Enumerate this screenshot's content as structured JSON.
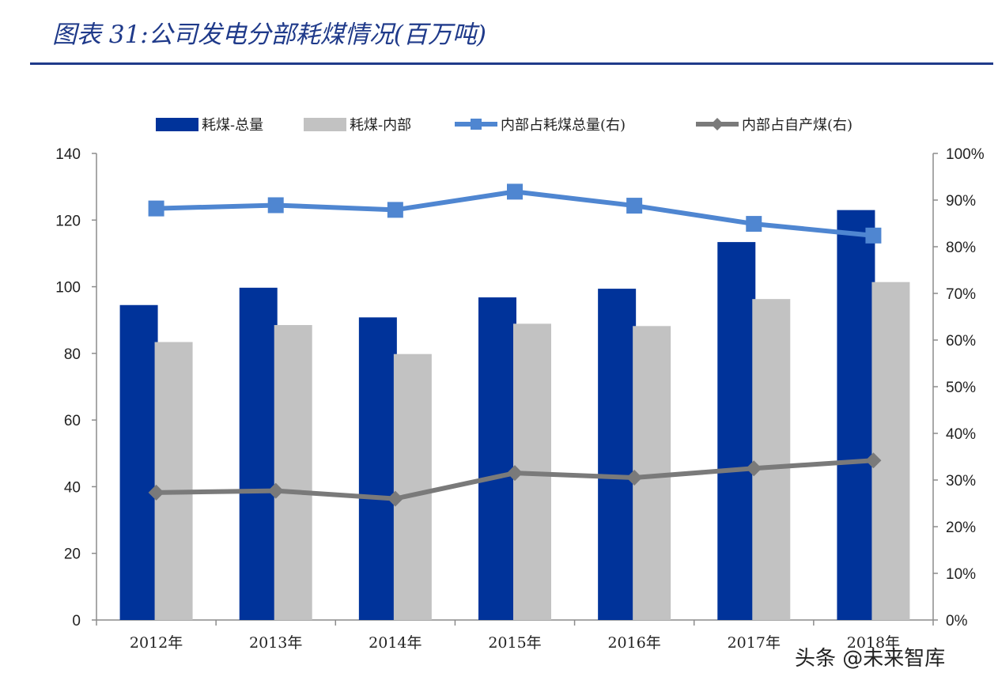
{
  "title": "图表 31:公司发电分部耗煤情况(百万吨)",
  "watermark": "头条 @未来智库",
  "chart_data": {
    "type": "bar",
    "categories": [
      "2012年",
      "2013年",
      "2014年",
      "2015年",
      "2016年",
      "2017年",
      "2018年"
    ],
    "series": [
      {
        "name": "耗煤-总量",
        "type": "bar",
        "axis": "left",
        "color": "#00339a",
        "values": [
          94.5,
          99.7,
          90.8,
          96.8,
          99.4,
          113.4,
          123.0
        ]
      },
      {
        "name": "耗煤-内部",
        "type": "bar",
        "axis": "left",
        "color": "#c2c2c2",
        "values": [
          83.4,
          88.5,
          79.8,
          88.9,
          88.2,
          96.3,
          101.4
        ]
      },
      {
        "name": "内部占耗煤总量(右)",
        "type": "line",
        "axis": "right",
        "color": "#4f86d1",
        "marker": "square",
        "values": [
          0.882,
          0.889,
          0.879,
          0.918,
          0.888,
          0.849,
          0.824
        ]
      },
      {
        "name": "内部占自产煤(右)",
        "type": "line",
        "axis": "right",
        "color": "#7a7a7a",
        "marker": "diamond",
        "values": [
          0.273,
          0.277,
          0.26,
          0.315,
          0.305,
          0.325,
          0.342
        ]
      }
    ],
    "y_left": {
      "min": 0,
      "max": 140,
      "ticks": [
        "0",
        "20",
        "40",
        "60",
        "80",
        "100",
        "120",
        "140"
      ]
    },
    "y_right": {
      "min": 0,
      "max": 1,
      "ticks": [
        "0%",
        "10%",
        "20%",
        "30%",
        "40%",
        "50%",
        "60%",
        "70%",
        "80%",
        "90%",
        "100%"
      ]
    },
    "legend": "top",
    "grid": false
  }
}
